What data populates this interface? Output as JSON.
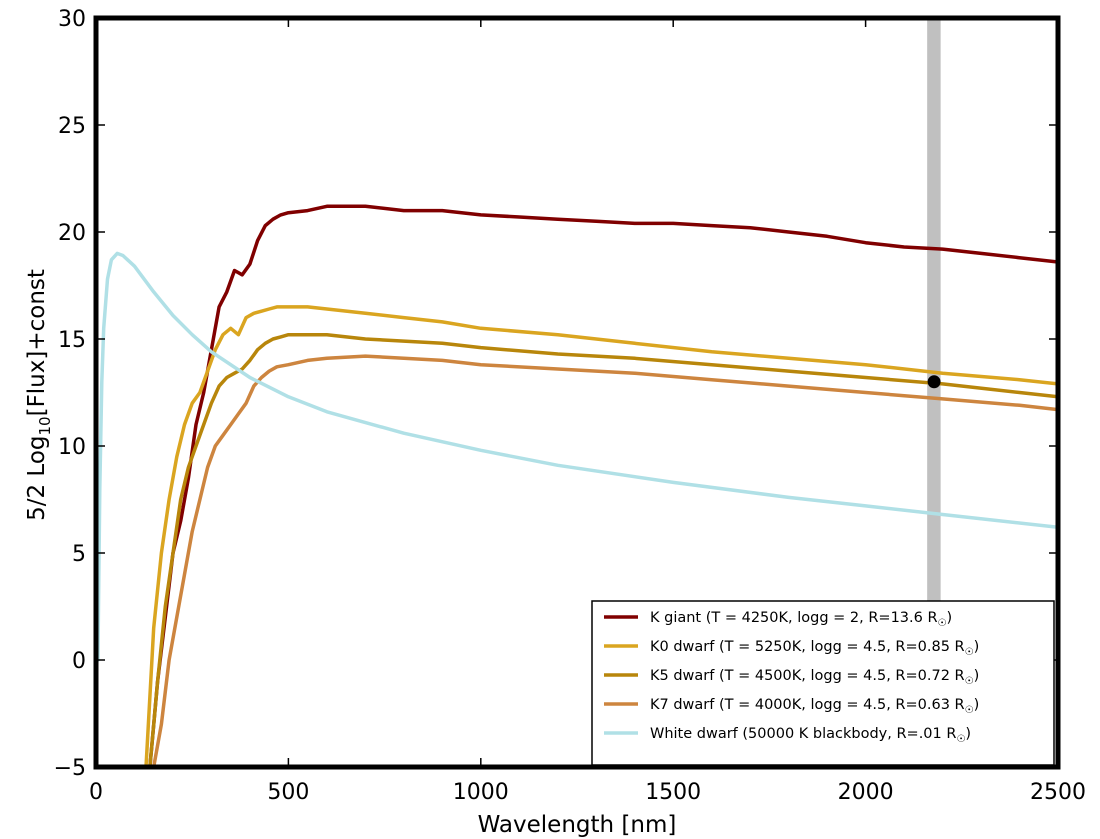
{
  "chart_data": {
    "type": "line",
    "xlabel": "Wavelength [nm]",
    "ylabel": {
      "main": "5/2 Log",
      "sub": "10",
      "rest": "[Flux]+const"
    },
    "xlim": [
      0,
      2500
    ],
    "ylim": [
      -5,
      30
    ],
    "x_ticks": [
      0,
      500,
      1000,
      1500,
      2000,
      2500
    ],
    "y_ticks": [
      -5,
      0,
      5,
      10,
      15,
      20,
      25,
      30
    ],
    "x_tick_labels": [
      "0",
      "500",
      "1000",
      "1500",
      "2000",
      "2500"
    ],
    "y_tick_labels": [
      "−5",
      "0",
      "5",
      "10",
      "15",
      "20",
      "25",
      "30"
    ],
    "grid": false,
    "legend_position": "lower-right",
    "highlight_band": {
      "x0": 2160,
      "x1": 2195,
      "color": "#c0c0c0"
    },
    "marker": {
      "x": 2178,
      "y": 13.0,
      "color": "#000000"
    },
    "series": [
      {
        "label_prefix": "K giant    (T = 4250K, logg = 2, R=13.6 R",
        "label_suffix": ")",
        "color": "#800000",
        "x": [
          140,
          160,
          180,
          200,
          220,
          240,
          260,
          280,
          300,
          320,
          340,
          360,
          380,
          400,
          420,
          440,
          460,
          480,
          500,
          550,
          600,
          700,
          800,
          900,
          1000,
          1100,
          1200,
          1300,
          1400,
          1500,
          1600,
          1700,
          1800,
          1900,
          2000,
          2100,
          2200,
          2300,
          2400,
          2500
        ],
        "y": [
          -5,
          -1,
          2,
          5,
          6.5,
          8.5,
          11,
          12.5,
          14.5,
          16.5,
          17.2,
          18.2,
          18,
          18.5,
          19.6,
          20.3,
          20.6,
          20.8,
          20.9,
          21.0,
          21.2,
          21.2,
          21.0,
          21.0,
          20.8,
          20.7,
          20.6,
          20.5,
          20.4,
          20.4,
          20.3,
          20.2,
          20.0,
          19.8,
          19.5,
          19.3,
          19.2,
          19.0,
          18.8,
          18.6
        ]
      },
      {
        "label_prefix": "K0 dwarf (T = 5250K, logg = 4.5, R=0.85 R",
        "label_suffix": ")",
        "color": "#daa520",
        "x": [
          130,
          150,
          170,
          190,
          210,
          230,
          250,
          270,
          290,
          310,
          330,
          350,
          370,
          390,
          410,
          430,
          450,
          470,
          500,
          550,
          600,
          700,
          800,
          900,
          1000,
          1200,
          1400,
          1600,
          1800,
          2000,
          2200,
          2400,
          2500
        ],
        "y": [
          -5,
          1.5,
          5,
          7.5,
          9.5,
          11,
          12,
          12.5,
          13.5,
          14.5,
          15.2,
          15.5,
          15.2,
          16,
          16.2,
          16.3,
          16.4,
          16.5,
          16.5,
          16.5,
          16.4,
          16.2,
          16.0,
          15.8,
          15.5,
          15.2,
          14.8,
          14.4,
          14.1,
          13.8,
          13.4,
          13.1,
          12.9
        ]
      },
      {
        "label_prefix": "K5 dwarf (T = 4500K, logg = 4.5, R=0.72 R",
        "label_suffix": ")",
        "color": "#b8860b",
        "x": [
          140,
          160,
          180,
          200,
          220,
          240,
          260,
          280,
          300,
          320,
          340,
          360,
          380,
          400,
          420,
          440,
          460,
          480,
          500,
          550,
          600,
          700,
          800,
          900,
          1000,
          1200,
          1400,
          1600,
          1800,
          2000,
          2200,
          2400,
          2500
        ],
        "y": [
          -5,
          -1,
          2.5,
          5,
          7.5,
          9,
          10,
          11,
          12,
          12.8,
          13.2,
          13.4,
          13.6,
          14,
          14.5,
          14.8,
          15.0,
          15.1,
          15.2,
          15.2,
          15.2,
          15.0,
          14.9,
          14.8,
          14.6,
          14.3,
          14.1,
          13.8,
          13.5,
          13.2,
          12.9,
          12.5,
          12.3
        ]
      },
      {
        "label_prefix": "K7 dwarf (T = 4000K, logg = 4.5, R=0.63 R",
        "label_suffix": ")",
        "color": "#cd853f",
        "x": [
          150,
          170,
          190,
          210,
          230,
          250,
          270,
          290,
          310,
          330,
          350,
          370,
          390,
          410,
          430,
          450,
          470,
          500,
          550,
          600,
          700,
          800,
          900,
          1000,
          1200,
          1400,
          1600,
          1800,
          2000,
          2200,
          2400,
          2500
        ],
        "y": [
          -5,
          -3,
          0,
          2,
          4,
          6,
          7.5,
          9,
          10,
          10.5,
          11,
          11.5,
          12,
          12.8,
          13.2,
          13.5,
          13.7,
          13.8,
          14.0,
          14.1,
          14.2,
          14.1,
          14.0,
          13.8,
          13.6,
          13.4,
          13.1,
          12.8,
          12.5,
          12.2,
          11.9,
          11.7
        ]
      },
      {
        "label_prefix": "White dwarf (50000 K blackbody, R=.01 R",
        "label_suffix": ")",
        "color": "#b0e0e6",
        "x": [
          5,
          10,
          15,
          20,
          30,
          40,
          55,
          70,
          100,
          150,
          200,
          250,
          300,
          400,
          500,
          600,
          800,
          1000,
          1200,
          1500,
          1800,
          2000,
          2200,
          2500
        ],
        "y": [
          0,
          8,
          13,
          15.5,
          17.8,
          18.7,
          19.0,
          18.9,
          18.4,
          17.2,
          16.1,
          15.2,
          14.4,
          13.2,
          12.3,
          11.6,
          10.6,
          9.8,
          9.1,
          8.3,
          7.6,
          7.2,
          6.8,
          6.2
        ]
      }
    ]
  }
}
